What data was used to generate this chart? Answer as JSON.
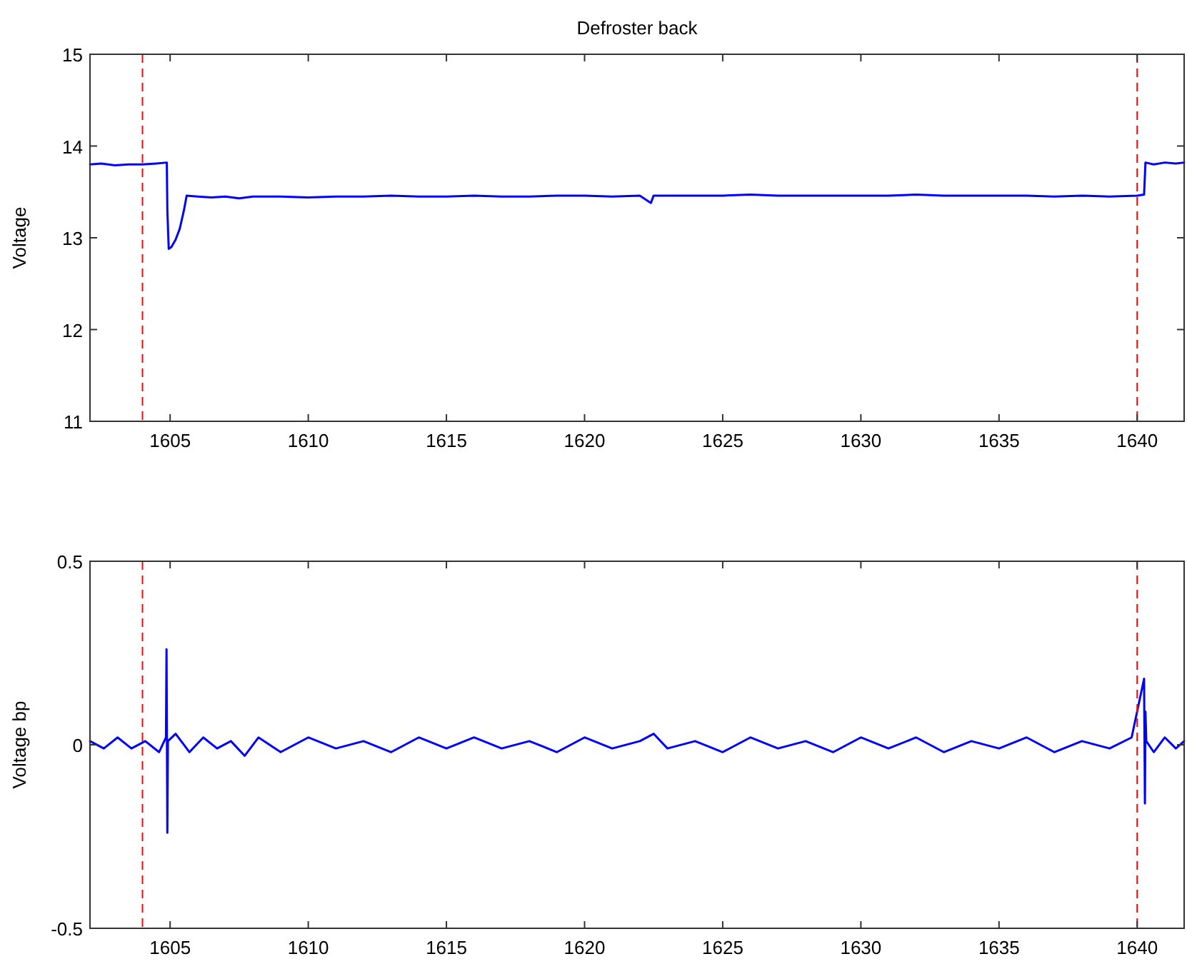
{
  "chart_data": [
    {
      "type": "line",
      "title": "Defroster back",
      "ylabel": "Voltage",
      "color": "#0000ff",
      "x": [
        1602.1,
        1602.5,
        1603,
        1603.5,
        1604,
        1604.5,
        1604.88,
        1604.9,
        1604.95,
        1605.05,
        1605.2,
        1605.35,
        1605.5,
        1605.6,
        1606,
        1606.5,
        1607,
        1607.5,
        1608,
        1609,
        1610,
        1611,
        1612,
        1613,
        1614,
        1615,
        1616,
        1617,
        1618,
        1619,
        1620,
        1621,
        1622,
        1622.4,
        1622.5,
        1623,
        1624,
        1625,
        1626,
        1627,
        1628,
        1629,
        1630,
        1631,
        1632,
        1633,
        1634,
        1635,
        1636,
        1637,
        1638,
        1639,
        1640,
        1640.25,
        1640.3,
        1640.6,
        1641,
        1641.4,
        1641.7
      ],
      "values": [
        13.8,
        13.81,
        13.79,
        13.8,
        13.8,
        13.81,
        13.82,
        13.3,
        12.88,
        12.9,
        12.98,
        13.1,
        13.3,
        13.46,
        13.45,
        13.44,
        13.45,
        13.43,
        13.45,
        13.45,
        13.44,
        13.45,
        13.45,
        13.46,
        13.45,
        13.45,
        13.46,
        13.45,
        13.45,
        13.46,
        13.46,
        13.45,
        13.46,
        13.38,
        13.46,
        13.46,
        13.46,
        13.46,
        13.47,
        13.46,
        13.46,
        13.46,
        13.46,
        13.46,
        13.47,
        13.46,
        13.46,
        13.46,
        13.46,
        13.45,
        13.46,
        13.45,
        13.46,
        13.47,
        13.82,
        13.8,
        13.82,
        13.81,
        13.82
      ],
      "xlim": [
        1602.1,
        1641.7
      ],
      "ylim": [
        11,
        15
      ],
      "xticks": [
        1605,
        1610,
        1615,
        1620,
        1625,
        1630,
        1635,
        1640
      ],
      "yticks": [
        11,
        12,
        13,
        14,
        15
      ],
      "ref_lines": [
        {
          "axis": "x",
          "value": 1604,
          "color": "#ff0000",
          "line_style": "dashed"
        },
        {
          "axis": "x",
          "value": 1640,
          "color": "#ff0000",
          "line_style": "dashed"
        }
      ]
    },
    {
      "type": "line",
      "ylabel": "Voltage bp",
      "color": "#0000ff",
      "x": [
        1602.1,
        1602.6,
        1603.1,
        1603.6,
        1604.1,
        1604.6,
        1604.85,
        1604.87,
        1604.9,
        1604.92,
        1605.2,
        1605.7,
        1606.2,
        1606.7,
        1607.2,
        1607.7,
        1608.2,
        1609,
        1610,
        1611,
        1612,
        1613,
        1614,
        1615,
        1616,
        1617,
        1618,
        1619,
        1620,
        1621,
        1622,
        1622.5,
        1623,
        1624,
        1625,
        1626,
        1627,
        1628,
        1629,
        1630,
        1631,
        1632,
        1633,
        1634,
        1635,
        1636,
        1637,
        1638,
        1639,
        1639.8,
        1640.25,
        1640.28,
        1640.3,
        1640.33,
        1640.6,
        1641,
        1641.4,
        1641.7
      ],
      "values": [
        0.01,
        -0.01,
        0.02,
        -0.01,
        0.01,
        -0.02,
        0.02,
        0.26,
        -0.24,
        0.01,
        0.03,
        -0.02,
        0.02,
        -0.01,
        0.01,
        -0.03,
        0.02,
        -0.02,
        0.02,
        -0.01,
        0.01,
        -0.02,
        0.02,
        -0.01,
        0.02,
        -0.01,
        0.01,
        -0.02,
        0.02,
        -0.01,
        0.01,
        0.03,
        -0.01,
        0.01,
        -0.02,
        0.02,
        -0.01,
        0.01,
        -0.02,
        0.02,
        -0.01,
        0.02,
        -0.02,
        0.01,
        -0.01,
        0.02,
        -0.02,
        0.01,
        -0.01,
        0.02,
        0.18,
        -0.16,
        0.09,
        0.01,
        -0.02,
        0.02,
        -0.01,
        0.01
      ],
      "xlim": [
        1602.1,
        1641.7
      ],
      "ylim": [
        -0.5,
        0.5
      ],
      "xticks": [
        1605,
        1610,
        1615,
        1620,
        1625,
        1630,
        1635,
        1640
      ],
      "yticks": [
        -0.5,
        0,
        0.5
      ],
      "ref_lines": [
        {
          "axis": "x",
          "value": 1604,
          "color": "#ff0000",
          "line_style": "dashed"
        },
        {
          "axis": "x",
          "value": 1640,
          "color": "#ff0000",
          "line_style": "dashed"
        }
      ]
    }
  ]
}
